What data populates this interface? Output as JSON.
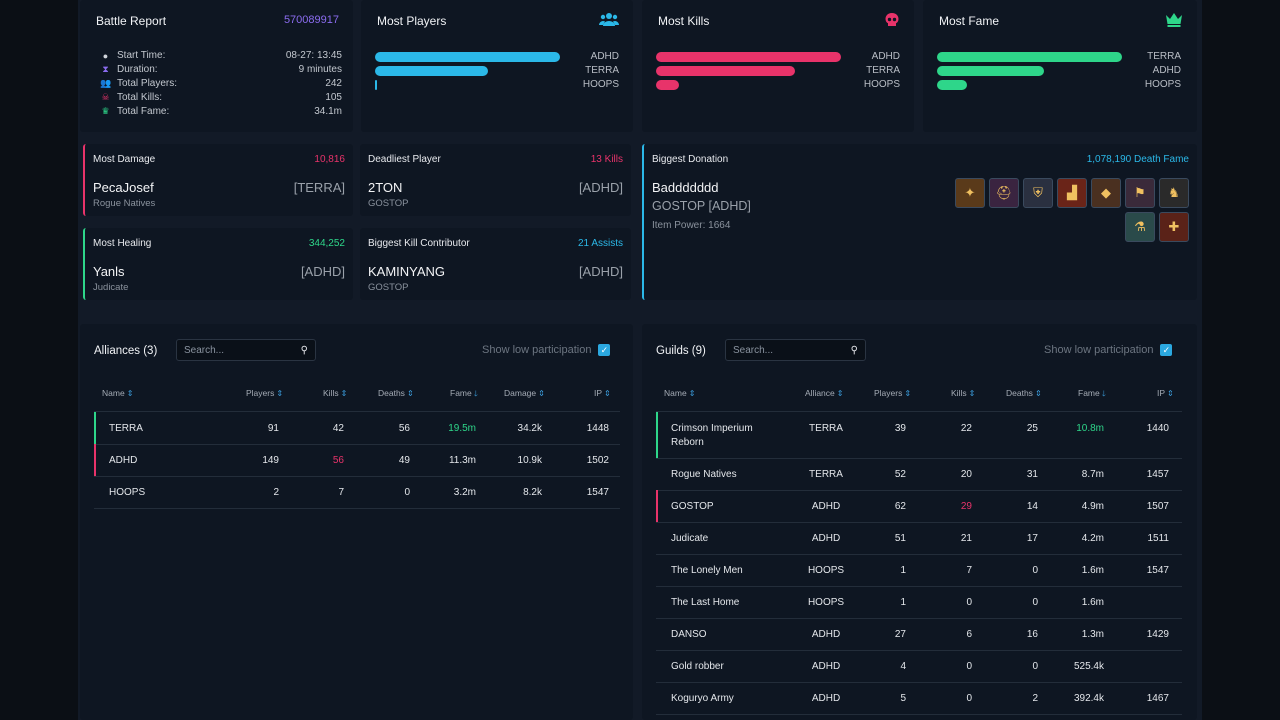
{
  "battle_report": {
    "title": "Battle Report",
    "id": "570089917",
    "rows": [
      {
        "icon": "clock-icon",
        "label": "Start Time:",
        "value": "08-27: 13:45"
      },
      {
        "icon": "hourglass-icon",
        "label": "Duration:",
        "value": "9 minutes"
      },
      {
        "icon": "users-icon",
        "label": "Total Players:",
        "value": "242"
      },
      {
        "icon": "skull-icon",
        "label": "Total Kills:",
        "value": "105"
      },
      {
        "icon": "crown-icon",
        "label": "Total Fame:",
        "value": "34.1m"
      }
    ]
  },
  "most_players": {
    "title": "Most Players",
    "color": "#2bb8e8",
    "bars": [
      {
        "label": "ADHD",
        "value": 149
      },
      {
        "label": "TERRA",
        "value": 91
      },
      {
        "label": "HOOPS",
        "value": 2
      }
    ]
  },
  "most_kills": {
    "title": "Most Kills",
    "color": "#e8336a",
    "bars": [
      {
        "label": "ADHD",
        "value": 56
      },
      {
        "label": "TERRA",
        "value": 42
      },
      {
        "label": "HOOPS",
        "value": 7
      }
    ]
  },
  "most_fame": {
    "title": "Most Fame",
    "color": "#2ed68a",
    "bars": [
      {
        "label": "TERRA",
        "value": 19.5
      },
      {
        "label": "ADHD",
        "value": 11.3
      },
      {
        "label": "HOOPS",
        "value": 3.2
      }
    ]
  },
  "most_damage": {
    "label": "Most Damage",
    "value": "10,816",
    "name": "PecaJosef",
    "tag": "[TERRA]",
    "guild": "Rogue Natives"
  },
  "deadliest": {
    "label": "Deadliest Player",
    "value": "13 Kills",
    "name": "2TON",
    "tag": "[ADHD]",
    "guild": "GOSTOP"
  },
  "most_healing": {
    "label": "Most Healing",
    "value": "344,252",
    "name": "Yanls",
    "tag": "[ADHD]",
    "guild": "Judicate"
  },
  "kill_contributor": {
    "label": "Biggest Kill Contributor",
    "value": "21 Assists",
    "name": "KAMINYANG",
    "tag": "[ADHD]",
    "guild": "GOSTOP"
  },
  "donation": {
    "label": "Biggest Donation",
    "value": "1,078,190 Death Fame",
    "name": "Baddddddd",
    "guild": "GOSTOP [ADHD]",
    "item_power": "Item Power: 1664",
    "items": [
      "staff-icon",
      "helmet-icon",
      "armor-icon",
      "boots-icon",
      "bag-icon",
      "cape-icon",
      "mount-icon",
      "potion-icon",
      "food-icon"
    ]
  },
  "alliances": {
    "title": "Alliances (3)",
    "search_placeholder": "Search...",
    "low_participation": "Show low participation",
    "columns": [
      "Name",
      "Players",
      "Kills",
      "Deaths",
      "Fame",
      "Damage",
      "IP"
    ],
    "rows": [
      {
        "name": "TERRA",
        "players": "91",
        "kills": "42",
        "deaths": "56",
        "fame": "19.5m",
        "damage": "34.2k",
        "ip": "1448",
        "mark": "#2ed68a",
        "fame_color": "#2ed68a"
      },
      {
        "name": "ADHD",
        "players": "149",
        "kills": "56",
        "deaths": "49",
        "fame": "11.3m",
        "damage": "10.9k",
        "ip": "1502",
        "mark": "#e8336a",
        "kills_color": "#e8336a"
      },
      {
        "name": "HOOPS",
        "players": "2",
        "kills": "7",
        "deaths": "0",
        "fame": "3.2m",
        "damage": "8.2k",
        "ip": "1547"
      }
    ]
  },
  "guilds": {
    "title": "Guilds (9)",
    "search_placeholder": "Search...",
    "low_participation": "Show low participation",
    "columns": [
      "Name",
      "Alliance",
      "Players",
      "Kills",
      "Deaths",
      "Fame",
      "IP"
    ],
    "rows": [
      {
        "name": "Crimson Imperium",
        "name2": "Reborn",
        "alliance": "TERRA",
        "players": "39",
        "kills": "22",
        "deaths": "25",
        "fame": "10.8m",
        "ip": "1440",
        "mark": "#2ed68a",
        "fame_color": "#2ed68a"
      },
      {
        "name": "Rogue Natives",
        "alliance": "TERRA",
        "players": "52",
        "kills": "20",
        "deaths": "31",
        "fame": "8.7m",
        "ip": "1457"
      },
      {
        "name": "GOSTOP",
        "alliance": "ADHD",
        "players": "62",
        "kills": "29",
        "deaths": "14",
        "fame": "4.9m",
        "ip": "1507",
        "mark": "#e8336a",
        "kills_color": "#e8336a"
      },
      {
        "name": "Judicate",
        "alliance": "ADHD",
        "players": "51",
        "kills": "21",
        "deaths": "17",
        "fame": "4.2m",
        "ip": "1511"
      },
      {
        "name": "The Lonely Men",
        "alliance": "HOOPS",
        "players": "1",
        "kills": "7",
        "deaths": "0",
        "fame": "1.6m",
        "ip": "1547"
      },
      {
        "name": "The Last Home",
        "alliance": "HOOPS",
        "players": "1",
        "kills": "0",
        "deaths": "0",
        "fame": "1.6m",
        "ip": ""
      },
      {
        "name": "DANSO",
        "alliance": "ADHD",
        "players": "27",
        "kills": "6",
        "deaths": "16",
        "fame": "1.3m",
        "ip": "1429"
      },
      {
        "name": "Gold robber",
        "alliance": "ADHD",
        "players": "4",
        "kills": "0",
        "deaths": "0",
        "fame": "525.4k",
        "ip": ""
      },
      {
        "name": "Koguryo Army",
        "alliance": "ADHD",
        "players": "5",
        "kills": "0",
        "deaths": "2",
        "fame": "392.4k",
        "ip": "1467"
      }
    ]
  }
}
